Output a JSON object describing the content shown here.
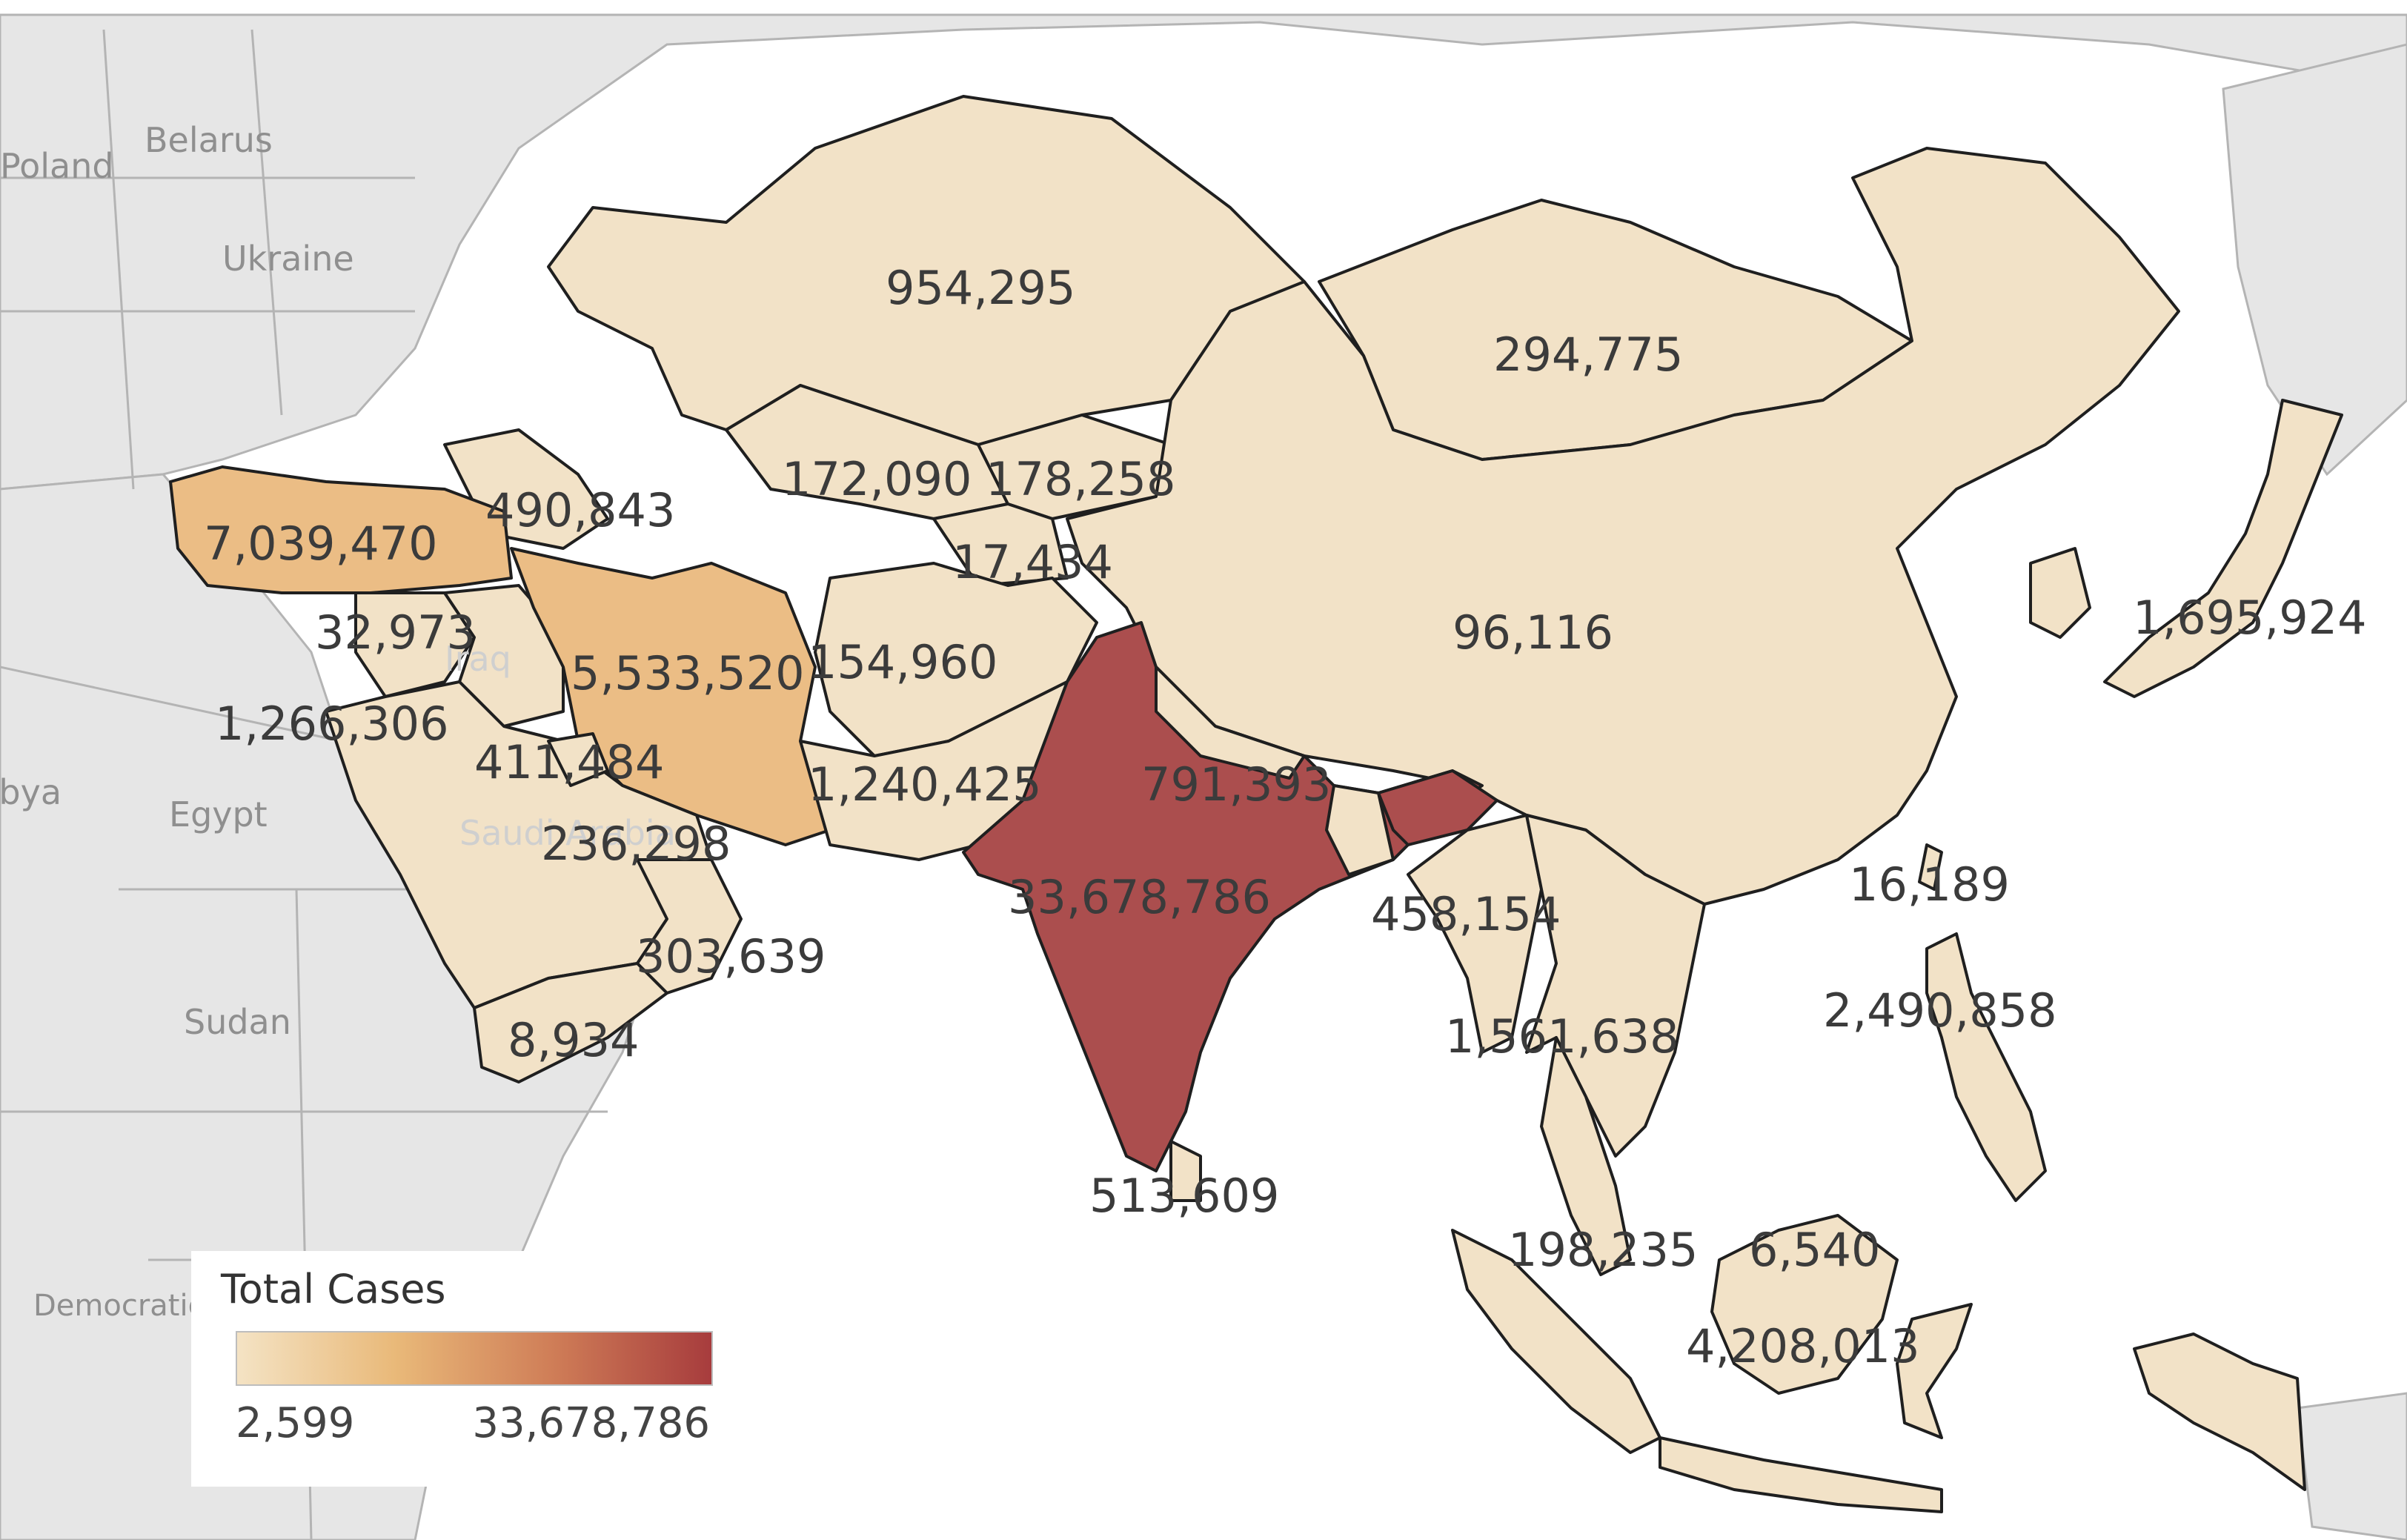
{
  "legend": {
    "title": "Total Cases",
    "min_label": "2,599",
    "max_label": "33,678,786",
    "min": 2599,
    "max": 33678786,
    "gradient_colors": [
      "#f4e3c4",
      "#e9b979",
      "#cf7d57",
      "#a73c3d"
    ]
  },
  "colors": {
    "ocean": "#ffffff",
    "basemap_land": "#e6e6e6",
    "basemap_border": "#b4b4b4",
    "country_border": "#1f1f1f",
    "label_text": "#3b3b3b"
  },
  "basemap_labels": [
    "Poland",
    "Belarus",
    "Ukraine",
    "Libya",
    "Egypt",
    "Sudan",
    "Democratic Republic of Congo",
    "Iraq",
    "Saudi Arabia"
  ],
  "regions": [
    {
      "label": "954,295",
      "value": 954295
    },
    {
      "label": "294,775",
      "value": 294775
    },
    {
      "label": "172,090",
      "value": 172090
    },
    {
      "label": "178,258",
      "value": 178258
    },
    {
      "label": "17,434",
      "value": 17434
    },
    {
      "label": "490,843",
      "value": 490843
    },
    {
      "label": "7,039,470",
      "value": 7039470
    },
    {
      "label": "32,973",
      "value": 32973
    },
    {
      "label": "5,533,520",
      "value": 5533520
    },
    {
      "label": "154,960",
      "value": 154960
    },
    {
      "label": "96,116",
      "value": 96116
    },
    {
      "label": "1,695,924",
      "value": 1695924
    },
    {
      "label": "1,266,306",
      "value": 1266306
    },
    {
      "label": "411,484",
      "value": 411484
    },
    {
      "label": "1,240,425",
      "value": 1240425
    },
    {
      "label": "791,393",
      "value": 791393
    },
    {
      "label": "236,298",
      "value": 236298
    },
    {
      "label": "33,678,786",
      "value": 33678786
    },
    {
      "label": "458,154",
      "value": 458154
    },
    {
      "label": "16,189",
      "value": 16189
    },
    {
      "label": "303,639",
      "value": 303639
    },
    {
      "label": "2,490,858",
      "value": 2490858
    },
    {
      "label": "1,561,638",
      "value": 1561638
    },
    {
      "label": "8,934",
      "value": 8934
    },
    {
      "label": "513,609",
      "value": 513609
    },
    {
      "label": "198,235",
      "value": 198235
    },
    {
      "label": "6,540",
      "value": 6540
    },
    {
      "label": "4,208,013",
      "value": 4208013
    }
  ]
}
